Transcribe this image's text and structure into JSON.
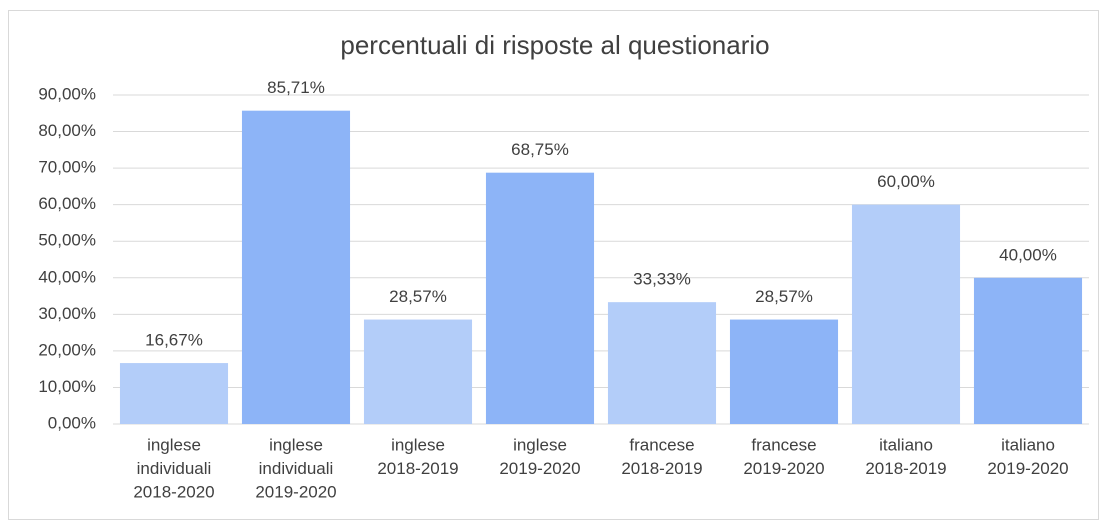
{
  "chart_data": {
    "type": "bar",
    "title": "percentuali di risposte al questionario",
    "categories": [
      [
        "inglese",
        "individuali",
        "2018-2020"
      ],
      [
        "inglese",
        "individuali",
        "2019-2020"
      ],
      [
        "inglese",
        "2018-2019"
      ],
      [
        "inglese",
        "2019-2020"
      ],
      [
        "francese",
        "2018-2019"
      ],
      [
        "francese",
        "2019-2020"
      ],
      [
        "italiano",
        "2018-2019"
      ],
      [
        "italiano",
        "2019-2020"
      ]
    ],
    "values": [
      16.67,
      85.71,
      28.57,
      68.75,
      33.33,
      28.57,
      60,
      40
    ],
    "value_labels": [
      "16,67%",
      "85,71%",
      "28,57%",
      "68,75%",
      "33,33%",
      "28,57%",
      "60,00%",
      "40,00%"
    ],
    "colors": [
      "#b3cdf9",
      "#8db4f7",
      "#b3cdf9",
      "#8db4f7",
      "#b3cdf9",
      "#8db4f7",
      "#b3cdf9",
      "#8db4f7"
    ],
    "ylim": [
      0,
      90
    ],
    "yticks": [
      {
        "value": 0,
        "label": "0,00%"
      },
      {
        "value": 10,
        "label": "10,00%"
      },
      {
        "value": 20,
        "label": "20,00%"
      },
      {
        "value": 30,
        "label": "30,00%"
      },
      {
        "value": 40,
        "label": "40,00%"
      },
      {
        "value": 50,
        "label": "50,00%"
      },
      {
        "value": 60,
        "label": "60,00%"
      },
      {
        "value": 70,
        "label": "70,00%"
      },
      {
        "value": 80,
        "label": "80,00%"
      },
      {
        "value": 90,
        "label": "90,00%"
      }
    ],
    "grid": true
  }
}
